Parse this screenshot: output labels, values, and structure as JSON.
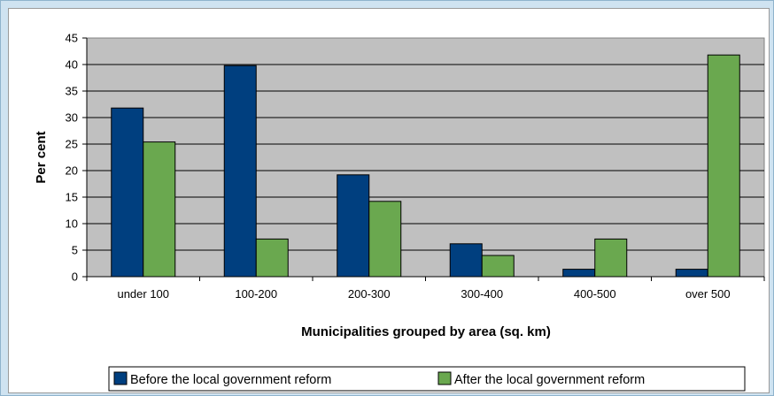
{
  "chart_data": {
    "type": "bar",
    "categories": [
      "under 100",
      "100-200",
      "200-300",
      "300-400",
      "400-500",
      "over 500"
    ],
    "series": [
      {
        "name": "Before the local government reform",
        "color": "#003f7f",
        "values": [
          31.8,
          39.8,
          19.2,
          6.2,
          1.4,
          1.4
        ]
      },
      {
        "name": "After the local government reform",
        "color": "#6aa84f",
        "values": [
          25.4,
          7.1,
          14.2,
          4.0,
          7.1,
          41.8
        ]
      }
    ],
    "title": "",
    "xlabel": "Municipalities grouped by area (sq. km)",
    "ylabel": "Per cent",
    "ylim": [
      0,
      45
    ],
    "yticks": [
      "0",
      "5",
      "10",
      "15",
      "20",
      "25",
      "30",
      "35",
      "40",
      "45"
    ],
    "grid": true,
    "plot_background": "#c0c0c0",
    "legend_position": "bottom"
  }
}
